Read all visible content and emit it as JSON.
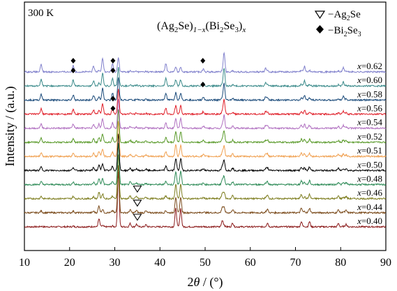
{
  "chart_data": {
    "type": "line",
    "temperature_label": "300 K",
    "title_parts": {
      "pre": "(Ag",
      "sub1": "2",
      "mid1": "Se)",
      "sub2": "1−x",
      "mid2": "(Bi",
      "sub3": "2",
      "mid3": "Se",
      "sub4": "3",
      "mid4": ")",
      "sub5": "x"
    },
    "xlabel": {
      "pre": "2",
      "italic": "θ",
      "post": " / (°)"
    },
    "ylabel": "Intensity / (a.u.)",
    "xlim": [
      10,
      90
    ],
    "xticks": [
      10,
      20,
      30,
      40,
      50,
      60,
      70,
      80,
      90
    ],
    "yticks_shown": false,
    "legend": {
      "placement": "top-right",
      "entries": [
        {
          "marker": "open-triangle-down",
          "text_pre": "−Ag",
          "sub": "2",
          "text_post": "Se"
        },
        {
          "marker": "filled-diamond",
          "text_pre": "−Bi",
          "sub": "2",
          "text_post": "Se",
          "sub2": "3"
        }
      ]
    },
    "series": [
      {
        "name": "x=0.40",
        "x_value": "0.40",
        "color": "#8b1a1a"
      },
      {
        "name": "x=0.44",
        "x_value": "0.44",
        "color": "#7a4a1a"
      },
      {
        "name": "x=0.46",
        "x_value": "0.46",
        "color": "#7d7d1e"
      },
      {
        "name": "x=0.48",
        "x_value": "0.48",
        "color": "#2e8b57"
      },
      {
        "name": "x=0.50",
        "x_value": "0.50",
        "color": "#000000"
      },
      {
        "name": "x=0.51",
        "x_value": "0.51",
        "color": "#f0a050"
      },
      {
        "name": "x=0.52",
        "x_value": "0.52",
        "color": "#5a9a2a"
      },
      {
        "name": "x=0.54",
        "x_value": "0.54",
        "color": "#b070c0"
      },
      {
        "name": "x=0.56",
        "x_value": "0.56",
        "color": "#e0202a"
      },
      {
        "name": "x=0.58",
        "x_value": "0.58",
        "color": "#1a4a7a"
      },
      {
        "name": "x=0.60",
        "x_value": "0.60",
        "color": "#3a8a8a"
      },
      {
        "name": "x=0.62",
        "x_value": "0.62",
        "color": "#8080cc"
      }
    ],
    "ag2se_peaks_2theta": [
      26.5,
      30.8,
      33.4,
      34.8,
      36.9,
      43.5,
      44.6,
      53.8,
      56.1,
      63.8,
      71.3,
      73.1,
      79.5,
      81.2
    ],
    "bi2se3_peaks_2theta": [
      13.7,
      20.8,
      25.3,
      27.3,
      29.5,
      41.3,
      49.6,
      54.2,
      63.4,
      72.0,
      80.6
    ],
    "ag2se_markers": [
      {
        "series": "x=0.46",
        "two_theta": 35.0
      },
      {
        "series": "x=0.44",
        "two_theta": 35.0
      },
      {
        "series": "x=0.40",
        "two_theta": 35.0
      }
    ],
    "bi2se3_markers": [
      {
        "series": "x=0.62",
        "two_theta": 20.8,
        "level": "above"
      },
      {
        "series": "x=0.62",
        "two_theta": 20.8,
        "level": "mid"
      },
      {
        "series": "x=0.62",
        "two_theta": 29.6,
        "level": "above"
      },
      {
        "series": "x=0.62",
        "two_theta": 29.6,
        "level": "mid"
      },
      {
        "series": "x=0.58",
        "two_theta": 29.6,
        "level": "mid"
      },
      {
        "series": "x=0.58",
        "two_theta": 29.6,
        "level": "low"
      },
      {
        "series": "x=0.62",
        "two_theta": 49.5,
        "level": "above"
      },
      {
        "series": "x=0.60",
        "two_theta": 49.5,
        "level": "mid"
      }
    ]
  }
}
